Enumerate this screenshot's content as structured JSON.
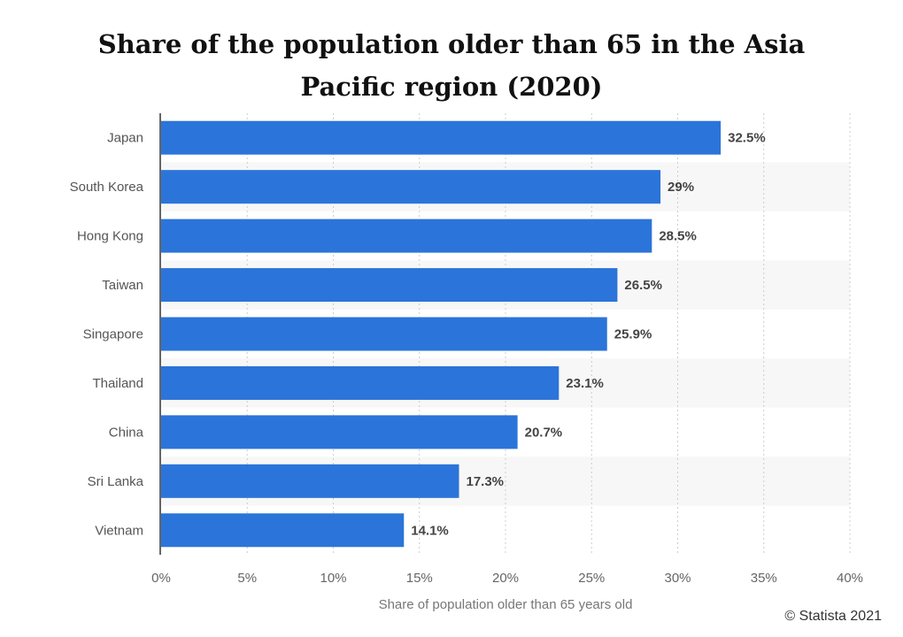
{
  "chart_data": {
    "type": "bar",
    "orientation": "horizontal",
    "title": "Share of the population older than 65 in the Asia Pacific region  (2020)",
    "categories": [
      "Japan",
      "South Korea",
      "Hong Kong",
      "Taiwan",
      "Singapore",
      "Thailand",
      "China",
      "Sri Lanka",
      "Vietnam"
    ],
    "values": [
      32.5,
      29,
      28.5,
      26.5,
      25.9,
      23.1,
      20.7,
      17.3,
      14.1
    ],
    "data_labels": [
      "32.5%",
      "29%",
      "28.5%",
      "26.5%",
      "25.9%",
      "23.1%",
      "20.7%",
      "17.3%",
      "14.1%"
    ],
    "xlabel": "Share of population older than 65 years old",
    "ylabel": "",
    "xlim": [
      0,
      40
    ],
    "x_ticks": [
      0,
      5,
      10,
      15,
      20,
      25,
      30,
      35,
      40
    ],
    "x_tick_labels": [
      "0%",
      "5%",
      "10%",
      "15%",
      "20%",
      "25%",
      "30%",
      "35%",
      "40%"
    ],
    "grid": true,
    "legend": "none",
    "bar_color": "#2b74d9",
    "stripe_color": "#f7f7f7"
  },
  "copyright": "© Statista 2021"
}
